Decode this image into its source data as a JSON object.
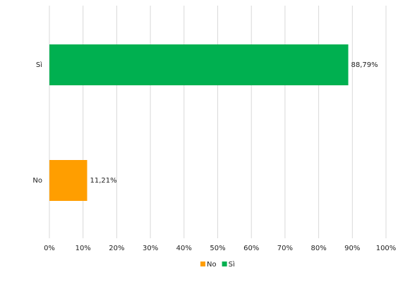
{
  "chart_data": {
    "type": "hbar",
    "categories": [
      "No",
      "Sì"
    ],
    "series": [
      {
        "name": "No",
        "color": "#ff9e00",
        "values": [
          11.21,
          null
        ],
        "value_labels": [
          "11,21%",
          null
        ]
      },
      {
        "name": "Sì",
        "color": "#00b050",
        "values": [
          null,
          88.79
        ],
        "value_labels": [
          null,
          "88,79%"
        ]
      }
    ],
    "xlim": [
      0,
      100
    ],
    "xticks": [
      {
        "value": 0,
        "label": "0%"
      },
      {
        "value": 10,
        "label": "10%"
      },
      {
        "value": 20,
        "label": "20%"
      },
      {
        "value": 30,
        "label": "30%"
      },
      {
        "value": 40,
        "label": "40%"
      },
      {
        "value": 50,
        "label": "50%"
      },
      {
        "value": 60,
        "label": "60%"
      },
      {
        "value": 70,
        "label": "70%"
      },
      {
        "value": 80,
        "label": "80%"
      },
      {
        "value": 90,
        "label": "90%"
      },
      {
        "value": 100,
        "label": "100%"
      }
    ],
    "grid": true,
    "legend": "bottom"
  }
}
